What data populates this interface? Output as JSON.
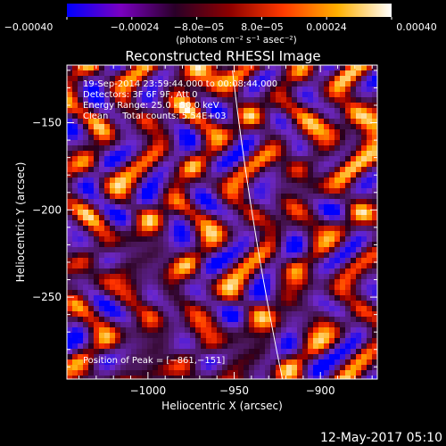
{
  "chart_data": {
    "type": "heatmap",
    "title": "Reconstructed RHESSI Image",
    "xlabel": "Heliocentric X (arcsec)",
    "ylabel": "Heliocentric Y (arcsec)",
    "xlim": [
      -1047,
      -867
    ],
    "ylim": [
      -297,
      -117
    ],
    "x_ticks": [
      {
        "value": -1000,
        "label": "−1000"
      },
      {
        "value": -950,
        "label": "−950"
      },
      {
        "value": -900,
        "label": "−900"
      }
    ],
    "y_ticks": [
      {
        "value": -150,
        "label": "−150"
      },
      {
        "value": -200,
        "label": "−200"
      },
      {
        "value": -250,
        "label": "−250"
      }
    ],
    "colorbar": {
      "range": [
        -0.0004,
        0.0004
      ],
      "tick_labels": [
        "−0.00040",
        "−0.00024",
        "−8.0e−05",
        "8.0e−05",
        "0.00024",
        "0.00040"
      ],
      "unit_label": "(photons cm⁻² s⁻¹ asec⁻²)",
      "colors": [
        "#0000ff",
        "#7a00c0",
        "#2a0028",
        "#8c0000",
        "#ff3a00",
        "#ffb000",
        "#ffffff"
      ]
    },
    "annotations": [
      "19-Sep-2014 23:59:44.000 to 00:08:44.000",
      "Detectors: 3F 6F 9F, Att 0",
      "Energy Range: 25.0 - 50.0 keV",
      "Clean     Total counts: 5.54E+03"
    ],
    "peak_label": "Position of Peak = [−861,−151]",
    "limb_color": "#ffffff"
  },
  "footer": {
    "timestamp": "12-May-2017 05:10"
  }
}
